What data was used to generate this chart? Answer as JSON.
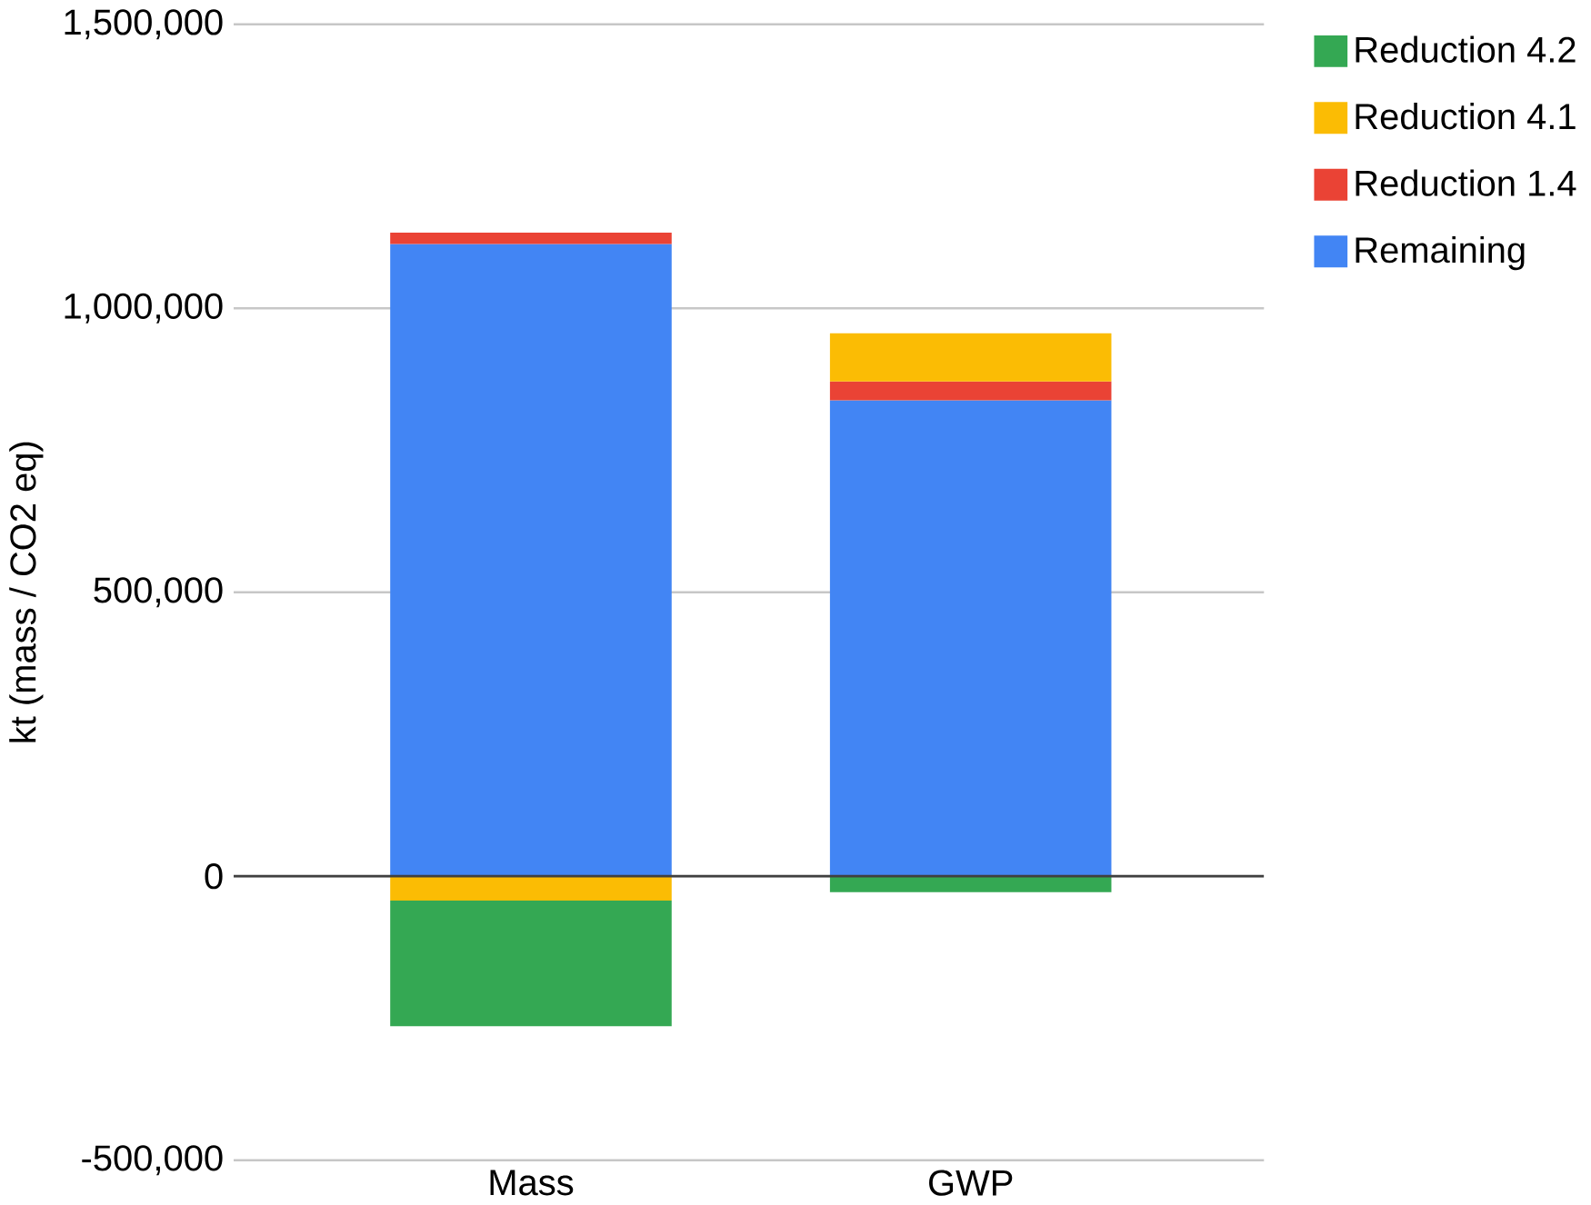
{
  "chart_data": {
    "type": "bar",
    "stacked": true,
    "ylabel": "kt (mass / CO2 eq)",
    "categories": [
      "Mass",
      "GWP"
    ],
    "series": [
      {
        "name": "Remaining",
        "color": "#4285f4",
        "values": [
          1113000,
          838000
        ]
      },
      {
        "name": "Reduction 1.4",
        "color": "#ea4335",
        "values": [
          20000,
          33000
        ]
      },
      {
        "name": "Reduction 4.1",
        "color": "#fbbc04",
        "values": [
          -43000,
          85000
        ]
      },
      {
        "name": "Reduction 4.2",
        "color": "#34a853",
        "values": [
          -221000,
          -28000
        ]
      }
    ],
    "ylim": [
      -500000,
      1500000
    ],
    "yticks": [
      {
        "value": -500000,
        "label": "-500,000"
      },
      {
        "value": 0,
        "label": "0"
      },
      {
        "value": 500000,
        "label": "500,000"
      },
      {
        "value": 1000000,
        "label": "1,000,000"
      },
      {
        "value": 1500000,
        "label": "1,500,000"
      }
    ],
    "grid": "y",
    "legend": "top right"
  }
}
